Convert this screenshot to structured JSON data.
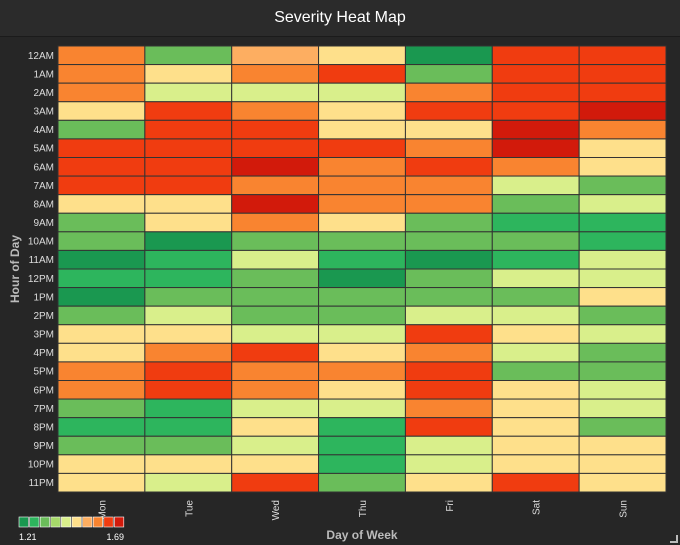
{
  "chart_data": {
    "type": "heatmap",
    "title": "Severity Heat Map",
    "xlabel": "Day of Week",
    "ylabel": "Hour of Day",
    "x_categories": [
      "Mon",
      "Tue",
      "Wed",
      "Thu",
      "Fri",
      "Sat",
      "Sun"
    ],
    "y_categories": [
      "12AM",
      "1AM",
      "2AM",
      "3AM",
      "4AM",
      "5AM",
      "6AM",
      "7AM",
      "8AM",
      "9AM",
      "10AM",
      "11AM",
      "12PM",
      "1PM",
      "2PM",
      "3PM",
      "4PM",
      "5PM",
      "6PM",
      "7PM",
      "8PM",
      "9PM",
      "10PM",
      "11PM"
    ],
    "color_scale": {
      "min": 1.21,
      "max": 1.69,
      "min_label": "1.21",
      "max_label": "1.69",
      "colors": [
        "#1a9850",
        "#2db55d",
        "#6abd5a",
        "#a6d96a",
        "#d9ef8b",
        "#fee08b",
        "#fdae61",
        "#f98430",
        "#f03c10",
        "#d21a0b"
      ]
    },
    "values": [
      [
        1.55,
        1.35,
        1.5,
        1.48,
        1.21,
        1.6,
        1.6
      ],
      [
        1.55,
        1.48,
        1.55,
        1.6,
        1.33,
        1.6,
        1.6
      ],
      [
        1.55,
        1.43,
        1.43,
        1.43,
        1.55,
        1.63,
        1.64
      ],
      [
        1.48,
        1.6,
        1.55,
        1.48,
        1.6,
        1.64,
        1.67
      ],
      [
        1.33,
        1.64,
        1.6,
        1.48,
        1.48,
        1.67,
        1.55
      ],
      [
        1.6,
        1.6,
        1.6,
        1.6,
        1.55,
        1.67,
        1.48
      ],
      [
        1.6,
        1.6,
        1.67,
        1.55,
        1.6,
        1.55,
        1.48
      ],
      [
        1.6,
        1.6,
        1.55,
        1.55,
        1.55,
        1.43,
        1.33
      ],
      [
        1.48,
        1.48,
        1.67,
        1.55,
        1.55,
        1.35,
        1.43
      ],
      [
        1.33,
        1.48,
        1.55,
        1.48,
        1.33,
        1.28,
        1.28
      ],
      [
        1.33,
        1.24,
        1.33,
        1.33,
        1.35,
        1.33,
        1.28
      ],
      [
        1.24,
        1.28,
        1.43,
        1.28,
        1.24,
        1.28,
        1.43
      ],
      [
        1.28,
        1.28,
        1.33,
        1.24,
        1.33,
        1.43,
        1.43
      ],
      [
        1.24,
        1.33,
        1.33,
        1.33,
        1.33,
        1.33,
        1.48
      ],
      [
        1.33,
        1.43,
        1.33,
        1.33,
        1.43,
        1.43,
        1.35
      ],
      [
        1.48,
        1.48,
        1.43,
        1.43,
        1.6,
        1.48,
        1.43
      ],
      [
        1.48,
        1.55,
        1.6,
        1.48,
        1.55,
        1.43,
        1.33
      ],
      [
        1.55,
        1.6,
        1.55,
        1.55,
        1.6,
        1.33,
        1.35
      ],
      [
        1.55,
        1.6,
        1.55,
        1.48,
        1.64,
        1.48,
        1.43
      ],
      [
        1.33,
        1.28,
        1.43,
        1.43,
        1.55,
        1.48,
        1.43
      ],
      [
        1.28,
        1.28,
        1.48,
        1.28,
        1.6,
        1.48,
        1.35
      ],
      [
        1.33,
        1.35,
        1.43,
        1.28,
        1.43,
        1.48,
        1.48
      ],
      [
        1.48,
        1.48,
        1.48,
        1.28,
        1.43,
        1.48,
        1.48
      ],
      [
        1.48,
        1.43,
        1.6,
        1.35,
        1.48,
        1.64,
        1.48
      ]
    ]
  }
}
